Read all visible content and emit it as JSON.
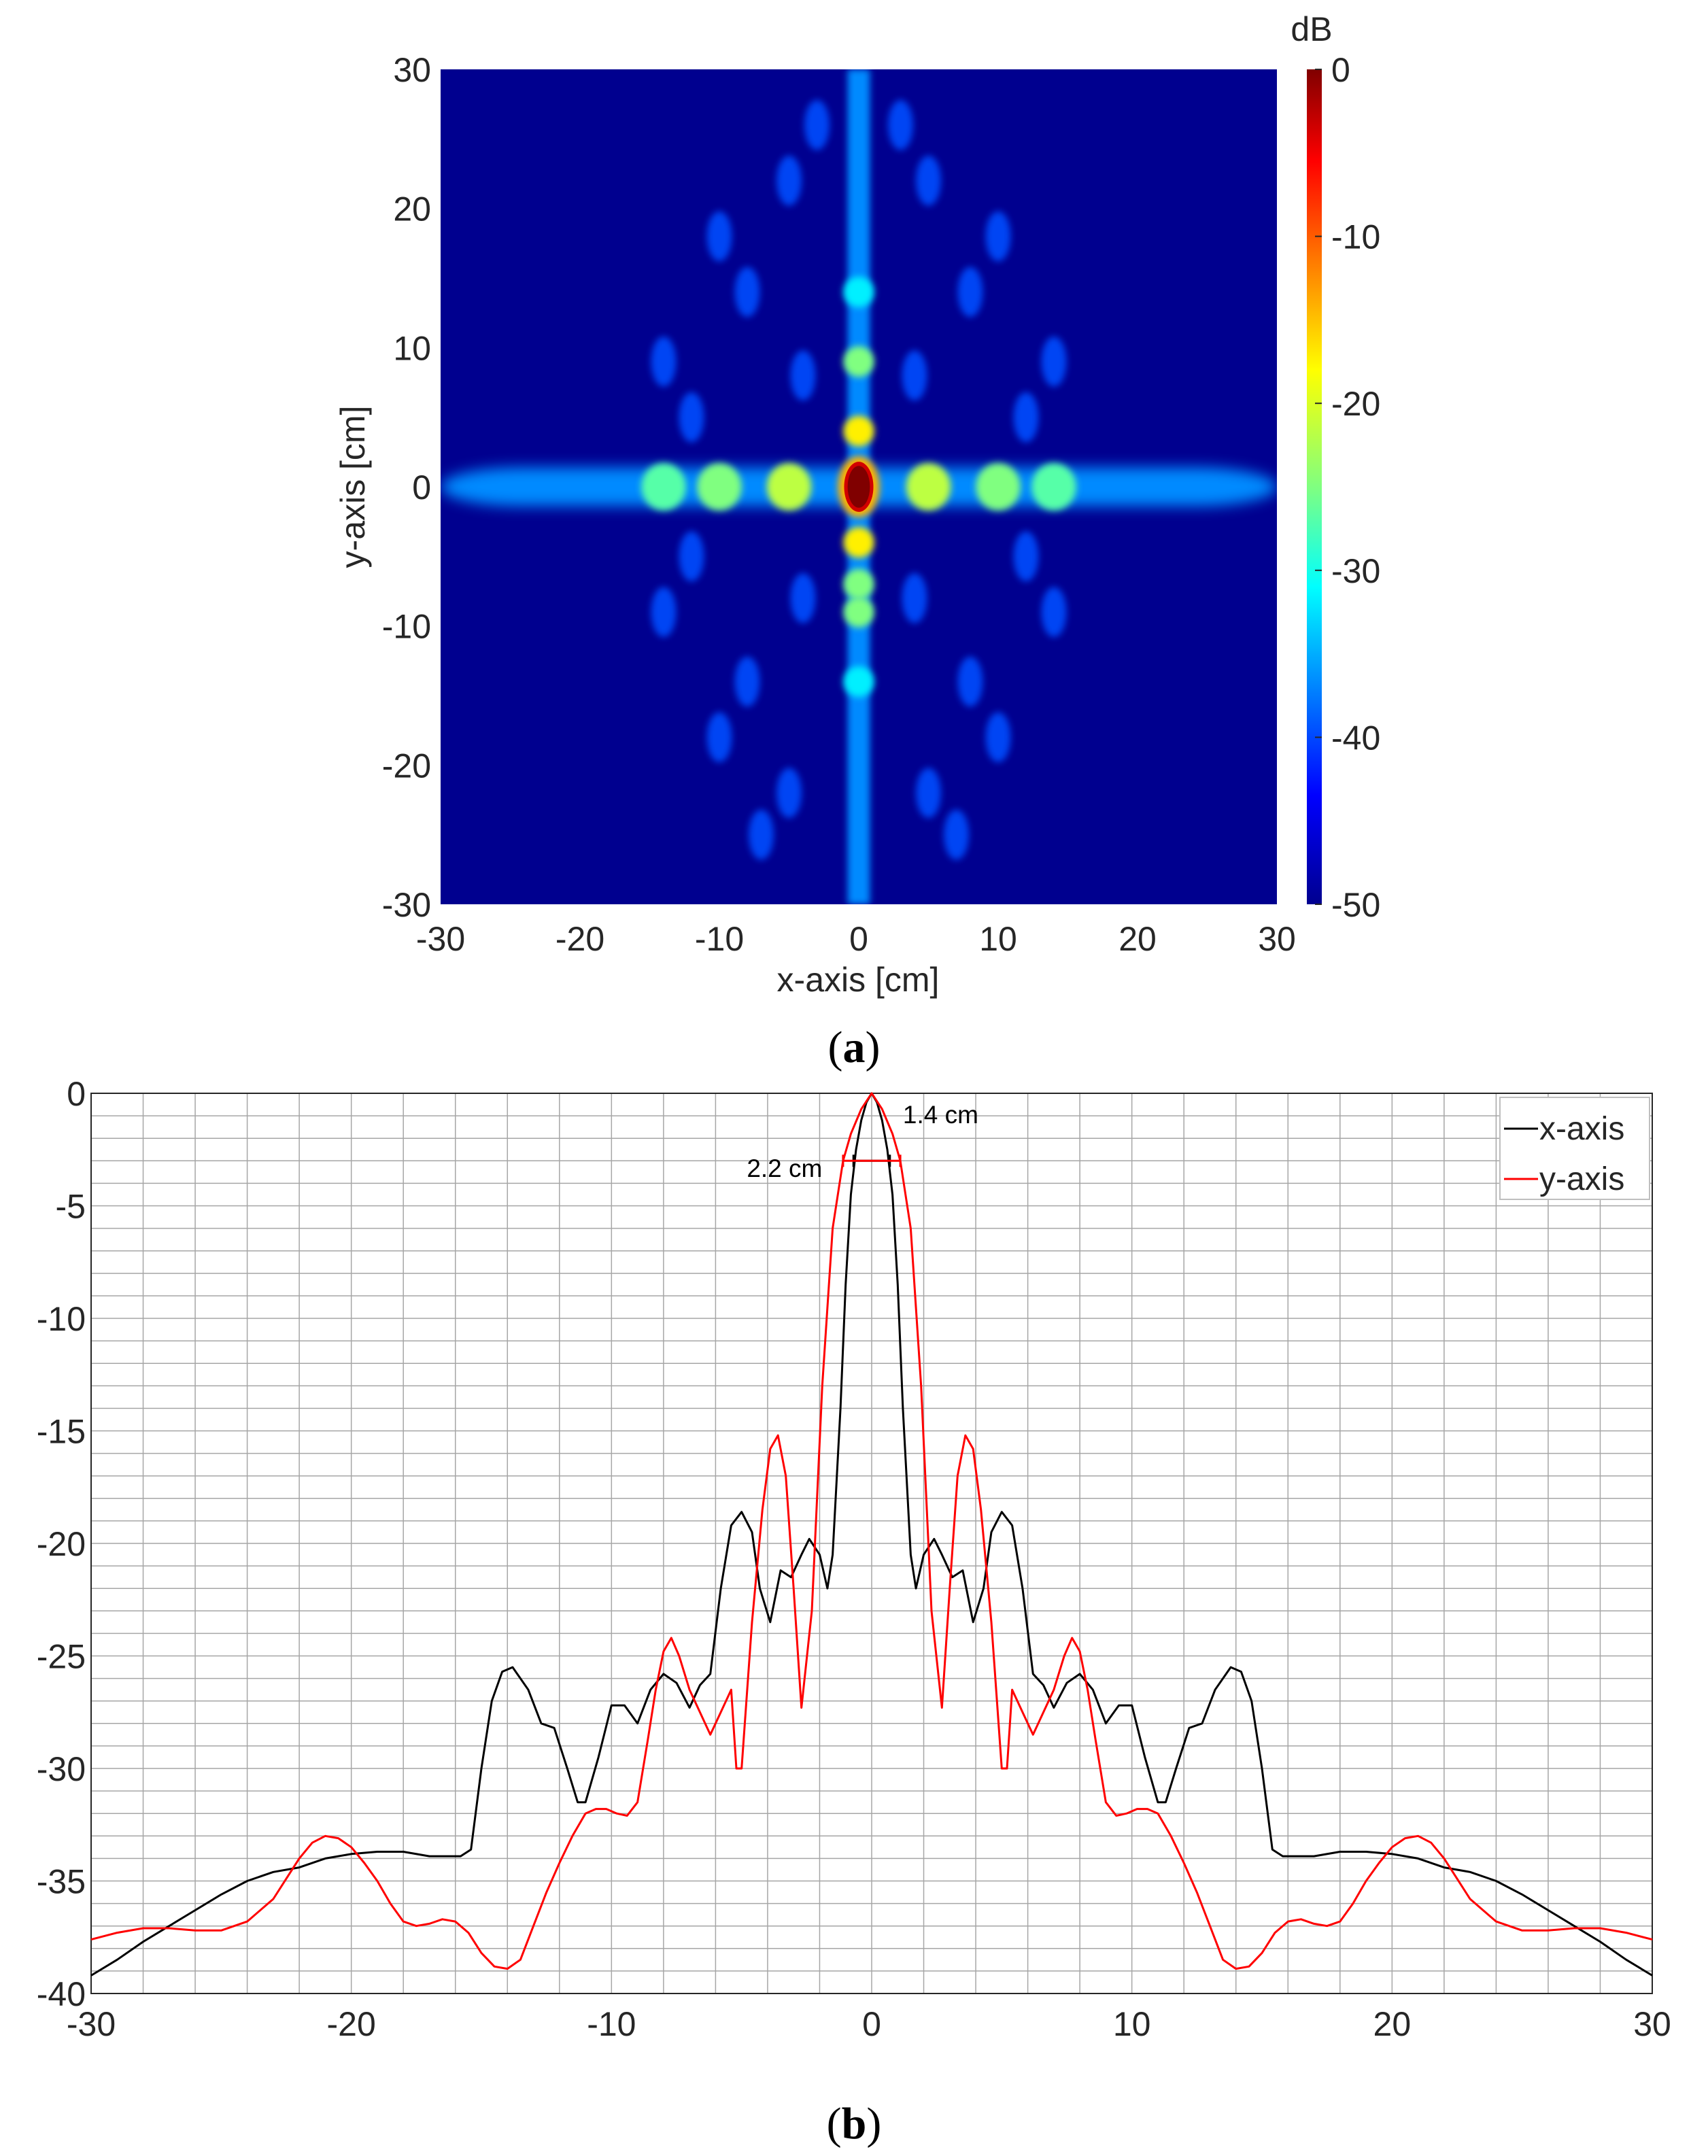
{
  "figure": {
    "panel_a_label": "a",
    "panel_b_label": "b",
    "colors": {
      "background_low": "#00008f",
      "series_x": "#000000",
      "series_y": "#ff0000",
      "grid": "#a6a6a6"
    }
  },
  "chart_data": [
    {
      "id": "a",
      "type": "heatmap",
      "xlabel": "x-axis [cm]",
      "ylabel": "y-axis [cm]",
      "xlim": [
        -30,
        30
      ],
      "ylim": [
        -30,
        30
      ],
      "xticks": [
        -30,
        -20,
        -10,
        0,
        10,
        20,
        30
      ],
      "yticks": [
        30,
        20,
        10,
        0,
        -10,
        -20,
        -30
      ],
      "colorbar": {
        "label": "dB",
        "range": [
          -50,
          0
        ],
        "ticks": [
          0,
          -10,
          -20,
          -30,
          -40,
          -50
        ],
        "colormap": "jet"
      },
      "features": {
        "peak_db": 0,
        "peak_position": [
          0,
          0
        ],
        "horizontal_band_extent_x": [
          -30,
          30
        ],
        "vertical_band_extent_y": [
          -30,
          30
        ],
        "horizontal_lobe_centers_x": [
          -14,
          -10,
          -5,
          0,
          5,
          10,
          14
        ],
        "vertical_lobe_centers_y": [
          -14,
          -9,
          -7,
          -4,
          0,
          4,
          9,
          14
        ],
        "band_level_db": -37,
        "sidelobe_level_db": -27,
        "first_sidelobe_db": -18
      }
    },
    {
      "id": "b",
      "type": "line",
      "xlabel": "",
      "ylabel": "",
      "xlim": [
        -30,
        30
      ],
      "ylim": [
        -40,
        0
      ],
      "xticks": [
        -30,
        -20,
        -10,
        0,
        10,
        20,
        30
      ],
      "yticks": [
        0,
        -5,
        -10,
        -15,
        -20,
        -25,
        -30,
        -35,
        -40
      ],
      "grid": true,
      "grid_minor_x": 2,
      "grid_minor_y": 1,
      "legend": {
        "placement": "top-right",
        "entries": [
          "x-axis",
          "y-axis"
        ]
      },
      "annotations": [
        {
          "text": "1.4 cm",
          "x": 1.2,
          "y": -0.9,
          "bar_series": "x-axis",
          "bar_x": [
            -0.7,
            0.7
          ],
          "bar_y": -3
        },
        {
          "text": "2.2 cm",
          "x": -4.8,
          "y": -3.3,
          "bar_series": "y-axis",
          "bar_x": [
            -1.1,
            1.1
          ],
          "bar_y": -3
        }
      ],
      "series": [
        {
          "name": "x-axis",
          "color": "#000000",
          "x": [
            0,
            0.2,
            0.4,
            0.6,
            0.8,
            1.0,
            1.2,
            1.5,
            1.7,
            2.0,
            2.4,
            2.7,
            3.1,
            3.5,
            3.9,
            4.3,
            4.6,
            5.0,
            5.4,
            5.8,
            6.2,
            6.6,
            7.0,
            7.5,
            8.0,
            8.5,
            9.0,
            9.5,
            10.0,
            10.5,
            11.0,
            11.3,
            11.7,
            12.2,
            12.7,
            13.2,
            13.8,
            14.2,
            14.6,
            15.0,
            15.4,
            15.8,
            16.2,
            17.0,
            18.0,
            19.0,
            20.0,
            21.0,
            22.0,
            23.0,
            24.0,
            25.0,
            26.0,
            27.0,
            28.0,
            29.0,
            30.0
          ],
          "y": [
            0,
            -0.4,
            -1.2,
            -2.5,
            -4.5,
            -8.5,
            -14,
            -20.5,
            -22,
            -20.5,
            -19.8,
            -20.5,
            -21.5,
            -21.2,
            -23.5,
            -22,
            -19.5,
            -18.6,
            -19.2,
            -22,
            -25.8,
            -26.3,
            -27.3,
            -26.2,
            -25.8,
            -26.5,
            -28,
            -27.2,
            -27.2,
            -29.5,
            -31.5,
            -31.5,
            -30,
            -28.2,
            -28,
            -26.5,
            -25.5,
            -25.7,
            -27,
            -30,
            -33.6,
            -33.9,
            -33.9,
            -33.9,
            -33.7,
            -33.7,
            -33.8,
            -34,
            -34.4,
            -34.6,
            -35,
            -35.6,
            -36.3,
            -37,
            -37.7,
            -38.5,
            -39.2
          ]
        },
        {
          "name": "y-axis",
          "color": "#ff0000",
          "x": [
            0,
            0.4,
            0.8,
            1.1,
            1.5,
            1.9,
            2.3,
            2.7,
            3.0,
            3.3,
            3.6,
            3.9,
            4.2,
            4.6,
            5.0,
            5.2,
            5.4,
            5.8,
            6.2,
            6.6,
            7.0,
            7.4,
            7.7,
            8.0,
            8.3,
            8.6,
            9.0,
            9.4,
            9.8,
            10.2,
            10.6,
            11.0,
            11.5,
            12.0,
            12.5,
            13.0,
            13.5,
            14.0,
            14.5,
            15.0,
            15.5,
            16.0,
            16.5,
            17.0,
            17.5,
            18.0,
            18.5,
            19.0,
            19.5,
            20.0,
            20.5,
            21.0,
            21.5,
            22.0,
            22.5,
            23.0,
            24.0,
            25.0,
            26.0,
            27.0,
            28.0,
            29.0,
            30.0
          ],
          "y": [
            0,
            -0.7,
            -1.8,
            -3.0,
            -6,
            -13,
            -23,
            -27.3,
            -22,
            -17,
            -15.2,
            -15.8,
            -18.5,
            -23.5,
            -30,
            -30,
            -26.5,
            -27.5,
            -28.5,
            -27.5,
            -26.5,
            -25,
            -24.2,
            -24.8,
            -26.5,
            -28.7,
            -31.5,
            -32.1,
            -32,
            -31.8,
            -31.8,
            -32,
            -33,
            -34.2,
            -35.5,
            -37,
            -38.5,
            -38.9,
            -38.8,
            -38.2,
            -37.3,
            -36.8,
            -36.7,
            -36.9,
            -37,
            -36.8,
            -36,
            -35,
            -34.2,
            -33.5,
            -33.1,
            -33.0,
            -33.3,
            -34,
            -34.9,
            -35.8,
            -36.8,
            -37.2,
            -37.2,
            -37.1,
            -37.1,
            -37.3,
            -37.6
          ]
        }
      ]
    }
  ]
}
